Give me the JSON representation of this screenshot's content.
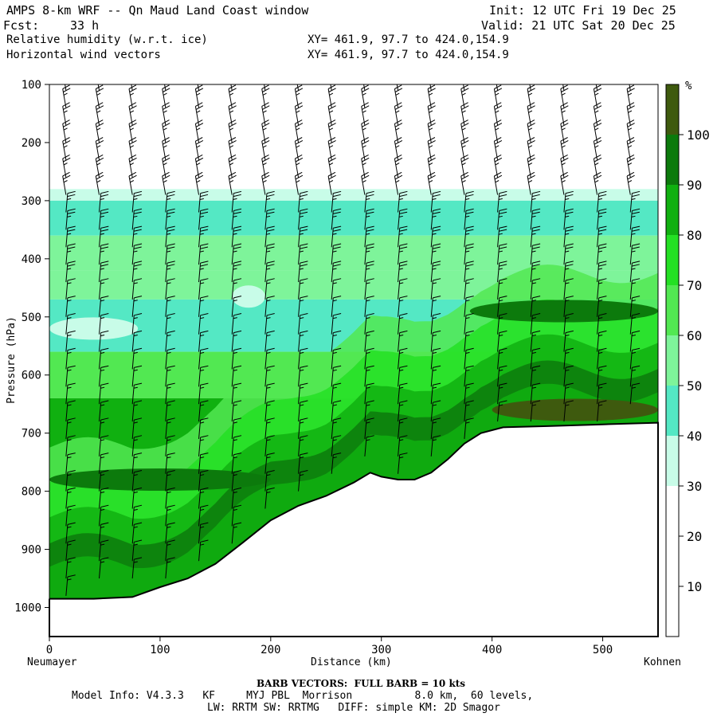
{
  "header": {
    "title": "AMPS 8-km WRF -- Qn Maud Land Coast window",
    "init": "Init: 12 UTC Fri 19 Dec 25",
    "fcst_label": "Fcst:",
    "fcst_value": "33 h",
    "valid": "Valid: 21 UTC Sat 20 Dec 25",
    "field1": "Relative humidity (w.r.t. ice)",
    "field2": "Horizontal wind vectors",
    "xy1": "XY= 461.9, 97.7 to 424.0,154.9",
    "xy2": "XY= 461.9, 97.7 to 424.0,154.9"
  },
  "footer": {
    "barb_note": "BARB VECTORS:  FULL BARB = 10 kts",
    "model_line1": "Model Info: V4.3.3   KF     MYJ PBL  Morrison          8.0 km,  60 levels,",
    "model_line2": "LW: RRTM SW: RRTMG   DIFF: simple KM: 2D Smagor"
  },
  "chart_data": {
    "type": "heatmap",
    "title": "Relative humidity (w.r.t. ice) cross-section with horizontal wind vectors",
    "xlabel": "Distance (km)",
    "ylabel": "Pressure (hPa)",
    "xlim": [
      0,
      550
    ],
    "ylim": [
      1050,
      100
    ],
    "x_ticks": [
      0,
      100,
      200,
      300,
      400,
      500
    ],
    "y_ticks": [
      100,
      200,
      300,
      400,
      500,
      600,
      700,
      800,
      900,
      1000
    ],
    "x_end_labels": {
      "left": "Neumayer",
      "right": "Kohnen"
    },
    "colorbar": {
      "unit": "%",
      "ticks": [
        10,
        20,
        30,
        40,
        50,
        60,
        70,
        80,
        90,
        100
      ],
      "bins": [
        {
          "from": 0,
          "to": 30,
          "color": "#ffffff"
        },
        {
          "from": 30,
          "to": 40,
          "color": "#c8fce8"
        },
        {
          "from": 40,
          "to": 50,
          "color": "#54e8c4"
        },
        {
          "from": 50,
          "to": 60,
          "color": "#7ef49a"
        },
        {
          "from": 60,
          "to": 70,
          "color": "#52e852"
        },
        {
          "from": 70,
          "to": 80,
          "color": "#24e024"
        },
        {
          "from": 80,
          "to": 90,
          "color": "#10b010"
        },
        {
          "from": 90,
          "to": 100,
          "color": "#0c7a0c"
        },
        {
          "from": 100,
          "to": 110,
          "color": "#3e5a0e"
        }
      ]
    },
    "terrain_surface_hpa": [
      [
        0,
        985
      ],
      [
        40,
        985
      ],
      [
        75,
        982
      ],
      [
        100,
        965
      ],
      [
        125,
        950
      ],
      [
        150,
        925
      ],
      [
        175,
        888
      ],
      [
        200,
        850
      ],
      [
        225,
        825
      ],
      [
        250,
        808
      ],
      [
        275,
        785
      ],
      [
        290,
        768
      ],
      [
        300,
        775
      ],
      [
        315,
        780
      ],
      [
        330,
        780
      ],
      [
        345,
        768
      ],
      [
        360,
        745
      ],
      [
        375,
        718
      ],
      [
        390,
        700
      ],
      [
        410,
        690
      ],
      [
        450,
        688
      ],
      [
        500,
        685
      ],
      [
        550,
        682
      ]
    ],
    "rh_layers": [
      {
        "name": "dry aloft",
        "p_top": 100,
        "p_bottom": 280,
        "rh": 10
      },
      {
        "name": "thin moist edge",
        "p_top": 280,
        "p_bottom": 300,
        "rh": 35
      },
      {
        "name": "upper moist band",
        "p_top": 300,
        "p_bottom": 360,
        "rh": 48
      },
      {
        "name": "mid green band",
        "p_top": 360,
        "p_bottom": 420,
        "rh": 58
      },
      {
        "name": "mid band",
        "p_top": 420,
        "p_bottom": 470,
        "rh": 50
      },
      {
        "name": "dry pocket",
        "p_top": 470,
        "p_bottom": 560,
        "rh": 42
      },
      {
        "name": "lower moist layer",
        "p_top": 560,
        "p_bottom": 640,
        "rh": 62
      },
      {
        "name": "boundary layer",
        "p_top": 640,
        "p_bottom": 1050,
        "rh": 80
      }
    ],
    "features": [
      {
        "name": "saturated streak",
        "x": [
          380,
          550
        ],
        "p_center": 490,
        "rh": 95
      },
      {
        "name": "saturated layer above plateau",
        "x": [
          400,
          550
        ],
        "p_center": 660,
        "rh": 100
      },
      {
        "name": "near-surface saturation",
        "x": [
          0,
          200
        ],
        "p_center": 780,
        "rh": 92
      },
      {
        "name": "dry patch",
        "x": [
          0,
          80
        ],
        "p_center": 520,
        "rh": 35
      },
      {
        "name": "dry patch",
        "x": [
          165,
          195
        ],
        "p_center": 465,
        "rh": 35
      }
    ],
    "wind_barbs": {
      "x_columns": [
        15,
        45,
        75,
        105,
        135,
        165,
        195,
        225,
        255,
        285,
        315,
        345,
        375,
        405,
        435,
        465,
        495,
        525
      ],
      "levels_hpa": [
        110,
        140,
        170,
        200,
        230,
        260,
        290,
        320,
        350,
        380,
        410,
        440,
        470,
        500,
        530,
        560,
        590,
        620,
        650,
        680,
        710,
        740,
        770,
        800,
        830,
        860,
        890,
        920,
        950,
        980
      ],
      "speed_kts_upper": 25,
      "speed_kts_lower": 15
    }
  }
}
